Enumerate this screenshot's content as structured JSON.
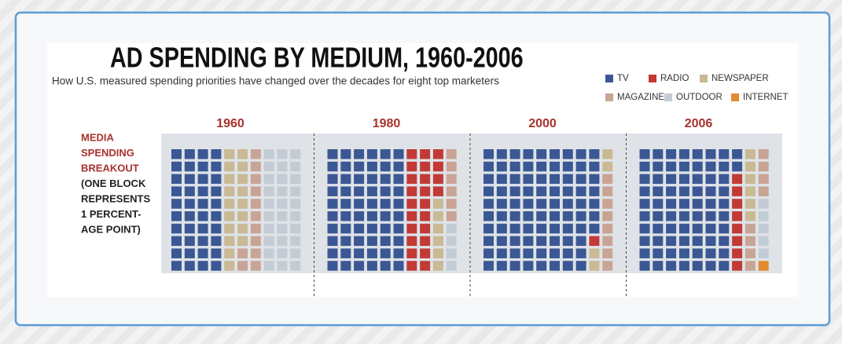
{
  "header": {
    "title": "AD SPENDING BY MEDIUM, 1960-2006",
    "subtitle": "How U.S. measured spending priorities have changed over the decades for eight top marketers"
  },
  "side_label": {
    "highlight": [
      "MEDIA",
      "SPENDING",
      "BREAKOUT"
    ],
    "note": [
      "(ONE BLOCK",
      "REPRESENTS",
      "1 PERCENT-",
      "AGE POINT)"
    ]
  },
  "chart_data": [
    {
      "type": "waffle",
      "title": "1960",
      "categories": [
        "TV",
        "RADIO",
        "NEWSPAPER",
        "MAGAZINE",
        "OUTDOOR",
        "INTERNET"
      ],
      "colors": [
        "#3b5894",
        "#c23a36",
        "#c9b994",
        "#c9a494",
        "#c3ccd4",
        "#e38b2f"
      ],
      "values": [
        40,
        0,
        18,
        12,
        30,
        0
      ]
    },
    {
      "type": "waffle",
      "title": "1980",
      "categories": [
        "TV",
        "RADIO",
        "NEWSPAPER",
        "MAGAZINE",
        "OUTDOOR",
        "INTERNET"
      ],
      "colors": [
        "#3b5894",
        "#c23a36",
        "#c9b994",
        "#c9a494",
        "#c3ccd4",
        "#e38b2f"
      ],
      "values": [
        60,
        24,
        6,
        6,
        4,
        0
      ]
    },
    {
      "type": "waffle",
      "title": "2000",
      "categories": [
        "TV",
        "RADIO",
        "NEWSPAPER",
        "MAGAZINE",
        "OUTDOOR",
        "INTERNET"
      ],
      "colors": [
        "#3b5894",
        "#c23a36",
        "#c9b994",
        "#c9a494",
        "#c3ccd4",
        "#e38b2f"
      ],
      "values": [
        87,
        1,
        4,
        8,
        0,
        0
      ]
    },
    {
      "type": "waffle",
      "title": "2006",
      "categories": [
        "TV",
        "RADIO",
        "NEWSPAPER",
        "MAGAZINE",
        "OUTDOOR",
        "INTERNET"
      ],
      "colors": [
        "#3b5894",
        "#c23a36",
        "#c9b994",
        "#c9a494",
        "#c3ccd4",
        "#e38b2f"
      ],
      "values": [
        72,
        8,
        6,
        8,
        5,
        1
      ]
    }
  ]
}
